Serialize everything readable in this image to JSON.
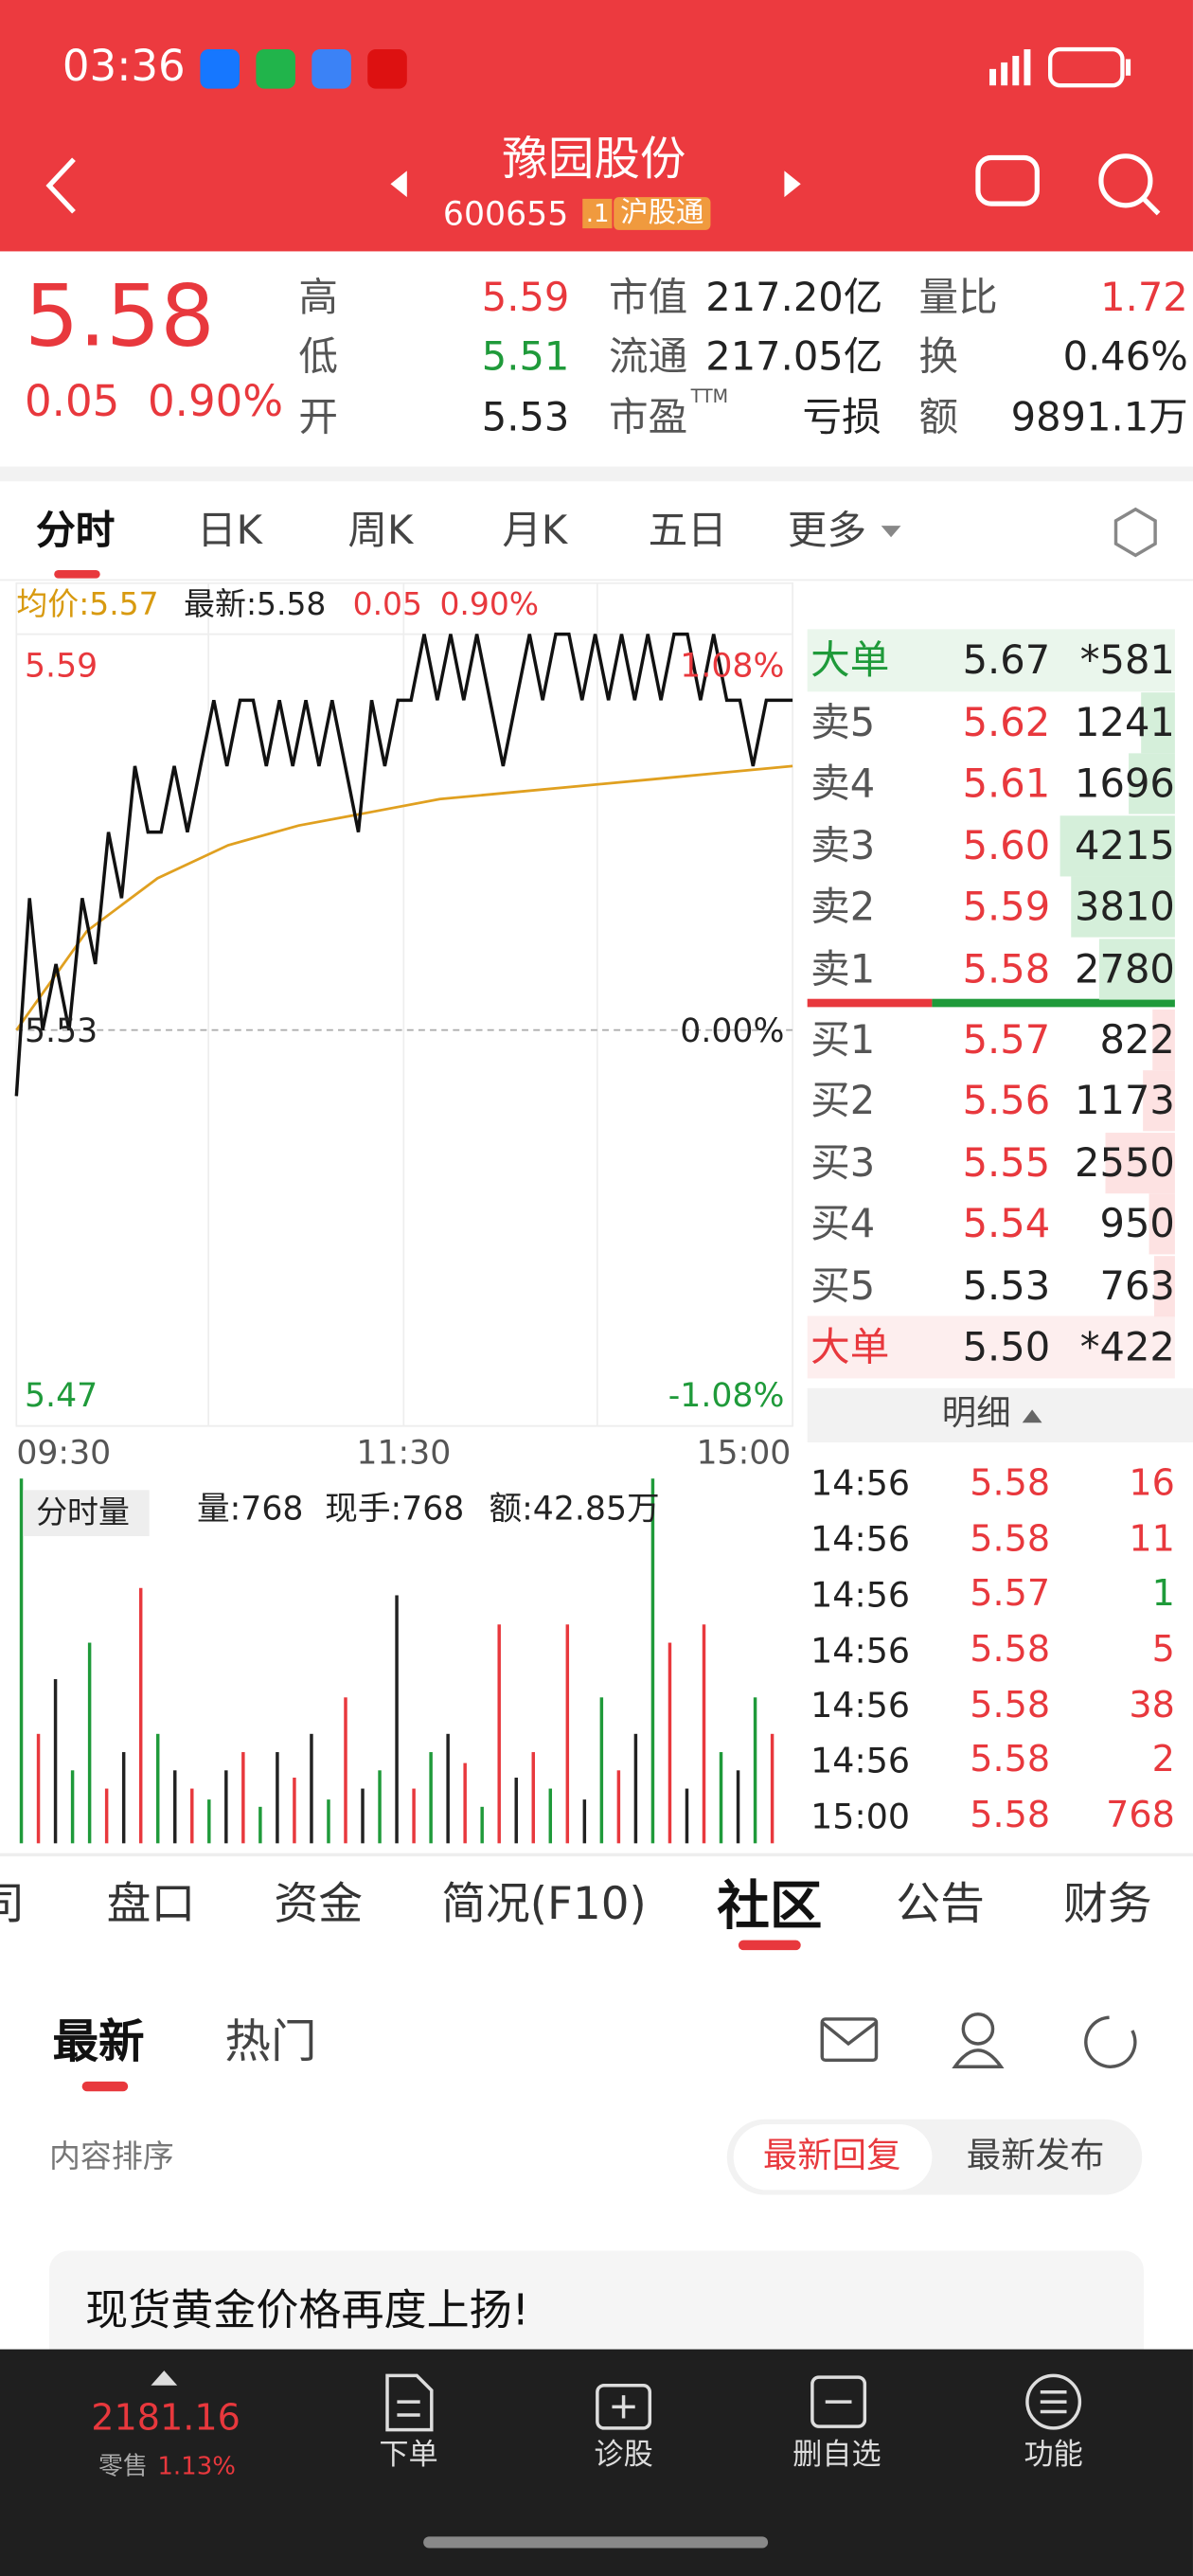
{
  "status_bar": {
    "time": "03:36"
  },
  "header": {
    "title": "豫园股份",
    "code": "600655",
    "tag": ".1",
    "market": "沪股通"
  },
  "quote": {
    "price": "5.58",
    "change": "0.05",
    "change_pct": "0.90%",
    "stats": [
      {
        "label": "高",
        "value": "5.59",
        "color": "#e8383d"
      },
      {
        "label": "低",
        "value": "5.51",
        "color": "#1f9a3a"
      },
      {
        "label": "开",
        "value": "5.53",
        "color": "#222222"
      },
      {
        "label": "市值",
        "value": "217.20亿",
        "color": "#222222"
      },
      {
        "label": "流通",
        "value": "217.05亿",
        "color": "#222222"
      },
      {
        "label": "市盈",
        "sup": "TTM",
        "value": "亏损",
        "color": "#222222"
      },
      {
        "label": "量比",
        "value": "1.72",
        "color": "#e8383d"
      },
      {
        "label": "换",
        "value": "0.46%",
        "color": "#222222"
      },
      {
        "label": "额",
        "value": "9891.1万",
        "color": "#222222"
      }
    ]
  },
  "chart_tabs": [
    "分时",
    "日K",
    "周K",
    "月K",
    "五日",
    "更多"
  ],
  "intraday": {
    "avg_label": "均价:5.57",
    "latest_label": "最新:5.58",
    "change": "0.05",
    "change_pct": "0.90%",
    "ylim": [
      5.47,
      5.59
    ],
    "yticks": [
      5.59,
      5.53,
      5.47
    ],
    "pct_ticks": [
      "1.08%",
      "0.00%",
      "-1.08%"
    ],
    "xticks": [
      "09:30",
      "11:30",
      "15:00"
    ],
    "price_color": "#111111",
    "avg_color": "#e0a020",
    "price": [
      5.52,
      5.55,
      5.53,
      5.54,
      5.53,
      5.55,
      5.54,
      5.56,
      5.55,
      5.57,
      5.56,
      5.56,
      5.57,
      5.56,
      5.57,
      5.58,
      5.57,
      5.58,
      5.58,
      5.57,
      5.58,
      5.57,
      5.58,
      5.57,
      5.58,
      5.57,
      5.56,
      5.58,
      5.57,
      5.58,
      5.58,
      5.59,
      5.58,
      5.59,
      5.58,
      5.59,
      5.58,
      5.57,
      5.58,
      5.59,
      5.58,
      5.59,
      5.59,
      5.58,
      5.59,
      5.58,
      5.59,
      5.58,
      5.59,
      5.58,
      5.59,
      5.59,
      5.58,
      5.59,
      5.58,
      5.58,
      5.57,
      5.58,
      5.58,
      5.58
    ],
    "avg": [
      5.53,
      5.545,
      5.553,
      5.558,
      5.561,
      5.563,
      5.565,
      5.566,
      5.567,
      5.568,
      5.569,
      5.57
    ]
  },
  "volume": {
    "label": "分时量",
    "stats": [
      "量:768",
      "现手:768",
      "额:42.85万"
    ],
    "ylim": [
      0,
      100
    ],
    "bars": [
      {
        "value": 100,
        "color": "#1f9a3a"
      },
      {
        "value": 30,
        "color": "#e8383d"
      },
      {
        "value": 45,
        "color": "#222222"
      },
      {
        "value": 20,
        "color": "#1f9a3a"
      },
      {
        "value": 55,
        "color": "#1f9a3a"
      },
      {
        "value": 15,
        "color": "#e8383d"
      },
      {
        "value": 25,
        "color": "#222222"
      },
      {
        "value": 70,
        "color": "#e8383d"
      },
      {
        "value": 30,
        "color": "#1f9a3a"
      },
      {
        "value": 20,
        "color": "#222222"
      },
      {
        "value": 15,
        "color": "#e8383d"
      },
      {
        "value": 12,
        "color": "#1f9a3a"
      },
      {
        "value": 20,
        "color": "#222222"
      },
      {
        "value": 25,
        "color": "#e8383d"
      },
      {
        "value": 10,
        "color": "#1f9a3a"
      },
      {
        "value": 25,
        "color": "#222222"
      },
      {
        "value": 18,
        "color": "#e8383d"
      },
      {
        "value": 30,
        "color": "#222222"
      },
      {
        "value": 12,
        "color": "#1f9a3a"
      },
      {
        "value": 40,
        "color": "#e8383d"
      },
      {
        "value": 15,
        "color": "#222222"
      },
      {
        "value": 20,
        "color": "#1f9a3a"
      },
      {
        "value": 68,
        "color": "#222222"
      },
      {
        "value": 15,
        "color": "#e8383d"
      },
      {
        "value": 25,
        "color": "#1f9a3a"
      },
      {
        "value": 30,
        "color": "#222222"
      },
      {
        "value": 22,
        "color": "#e8383d"
      },
      {
        "value": 10,
        "color": "#1f9a3a"
      },
      {
        "value": 60,
        "color": "#e8383d"
      },
      {
        "value": 18,
        "color": "#222222"
      },
      {
        "value": 25,
        "color": "#e8383d"
      },
      {
        "value": 15,
        "color": "#1f9a3a"
      },
      {
        "value": 60,
        "color": "#e8383d"
      },
      {
        "value": 12,
        "color": "#222222"
      },
      {
        "value": 40,
        "color": "#1f9a3a"
      },
      {
        "value": 20,
        "color": "#e8383d"
      },
      {
        "value": 30,
        "color": "#222222"
      },
      {
        "value": 100,
        "color": "#1f9a3a"
      },
      {
        "value": 55,
        "color": "#e8383d"
      },
      {
        "value": 15,
        "color": "#222222"
      },
      {
        "value": 60,
        "color": "#e8383d"
      },
      {
        "value": 25,
        "color": "#1f9a3a"
      },
      {
        "value": 20,
        "color": "#222222"
      },
      {
        "value": 40,
        "color": "#1f9a3a"
      },
      {
        "value": 30,
        "color": "#e8383d"
      }
    ]
  },
  "order_book": {
    "rows": [
      {
        "label": "大单",
        "price": "5.67",
        "volume": "*581",
        "side": "big",
        "label_color": "#1f9a3a",
        "price_color": "#222222"
      },
      {
        "label": "卖5",
        "price": "5.62",
        "volume": "1241",
        "side": "sell",
        "label_color": "#555555",
        "price_color": "#e8383d"
      },
      {
        "label": "卖4",
        "price": "5.61",
        "volume": "1696",
        "side": "sell",
        "label_color": "#555555",
        "price_color": "#e8383d"
      },
      {
        "label": "卖3",
        "price": "5.60",
        "volume": "4215",
        "side": "sell",
        "label_color": "#555555",
        "price_color": "#e8383d"
      },
      {
        "label": "卖2",
        "price": "5.59",
        "volume": "3810",
        "side": "sell",
        "label_color": "#555555",
        "price_color": "#e8383d"
      },
      {
        "label": "卖1",
        "price": "5.58",
        "volume": "2780",
        "side": "sell",
        "label_color": "#555555",
        "price_color": "#e8383d"
      },
      {
        "label": "买1",
        "price": "5.57",
        "volume": "822",
        "side": "buy",
        "label_color": "#555555",
        "price_color": "#e8383d"
      },
      {
        "label": "买2",
        "price": "5.56",
        "volume": "1173",
        "side": "buy",
        "label_color": "#555555",
        "price_color": "#e8383d"
      },
      {
        "label": "买3",
        "price": "5.55",
        "volume": "2550",
        "side": "buy",
        "label_color": "#555555",
        "price_color": "#e8383d"
      },
      {
        "label": "买4",
        "price": "5.54",
        "volume": "950",
        "side": "buy",
        "label_color": "#555555",
        "price_color": "#e8383d"
      },
      {
        "label": "买5",
        "price": "5.53",
        "volume": "763",
        "side": "buy",
        "label_color": "#555555",
        "price_color": "#222222"
      },
      {
        "label": "大单",
        "price": "5.50",
        "volume": "*422",
        "side": "big",
        "label_color": "#e8383d",
        "price_color": "#222222"
      }
    ]
  },
  "detail": {
    "title": "明细",
    "rows": [
      {
        "time": "14:56",
        "price": "5.58",
        "volume": "16",
        "color": "#e8383d"
      },
      {
        "time": "14:56",
        "price": "5.58",
        "volume": "11",
        "color": "#e8383d"
      },
      {
        "time": "14:56",
        "price": "5.57",
        "volume": "1",
        "color": "#1f9a3a"
      },
      {
        "time": "14:56",
        "price": "5.58",
        "volume": "5",
        "color": "#e8383d"
      },
      {
        "time": "14:56",
        "price": "5.58",
        "volume": "38",
        "color": "#e8383d"
      },
      {
        "time": "14:56",
        "price": "5.58",
        "volume": "2",
        "color": "#e8383d"
      },
      {
        "time": "15:00",
        "price": "5.58",
        "volume": "768",
        "color": "#e8383d"
      }
    ]
  },
  "stock_tabs": [
    "司",
    "盘口",
    "资金",
    "简况(F10)",
    "社区",
    "公告",
    "财务"
  ],
  "community": {
    "tabs": [
      "最新",
      "热门"
    ],
    "sort_label": "内容排序",
    "sort_options": [
      "最新回复",
      "最新发布"
    ],
    "posts": [
      "现货黄金价格再度上扬!"
    ]
  },
  "bottom_bar": {
    "index_value": "2181.16",
    "index_name": "零售",
    "index_change": "1.13%",
    "items": [
      "下单",
      "诊股",
      "删自选",
      "功能"
    ]
  }
}
